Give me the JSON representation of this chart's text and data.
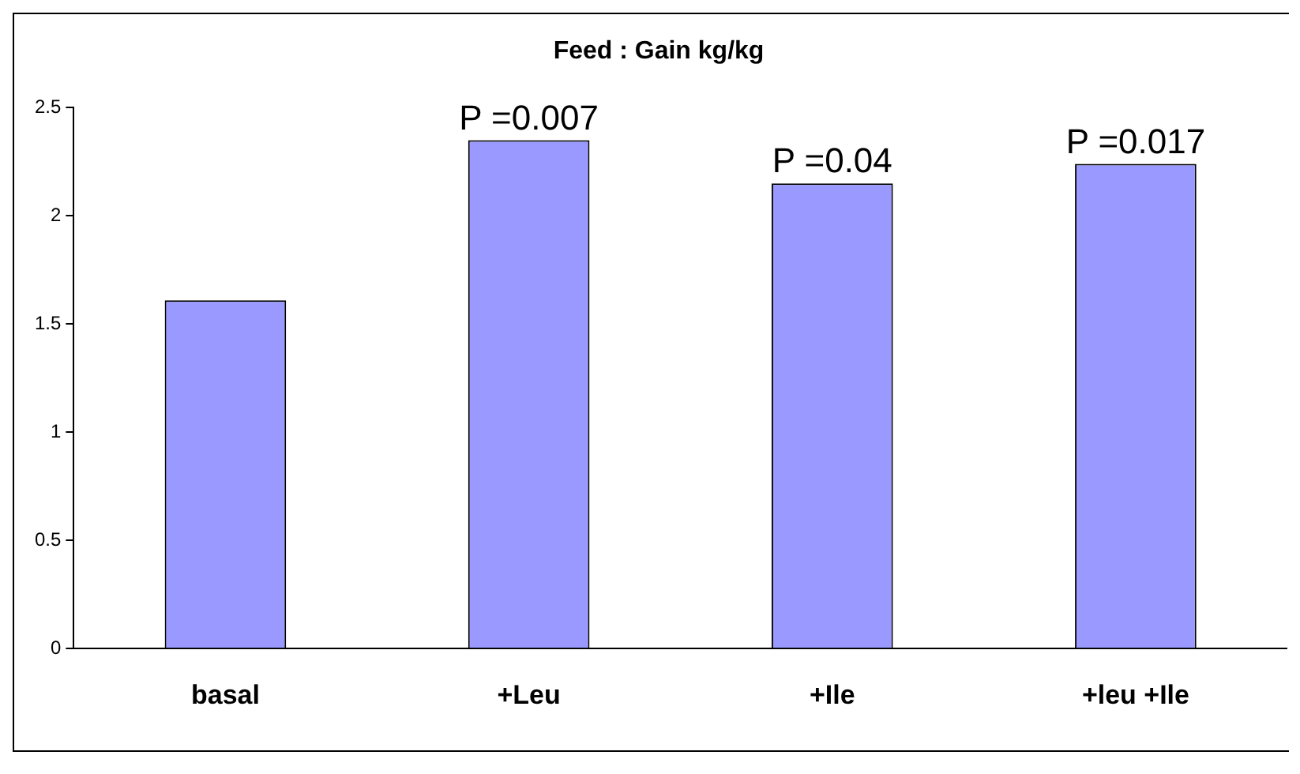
{
  "chart_data": {
    "type": "bar",
    "title": "Feed : Gain kg/kg",
    "categories": [
      "basal",
      "+Leu",
      "+Ile",
      "+leu +Ile"
    ],
    "values": [
      1.61,
      2.35,
      2.15,
      2.24
    ],
    "color": "#9999ff",
    "ylim": [
      0,
      2.5
    ],
    "yticks": [
      0,
      0.5,
      1,
      1.5,
      2,
      2.5
    ],
    "grid": false,
    "legend": false,
    "annotations": [
      {
        "text": "P =0.007",
        "x": "+Leu",
        "y": 2.35
      },
      {
        "text": "P =0.04",
        "x": "+Ile",
        "y": 2.15
      },
      {
        "text": "P =0.017",
        "x": "+leu +Ile",
        "y": 2.24
      }
    ]
  }
}
